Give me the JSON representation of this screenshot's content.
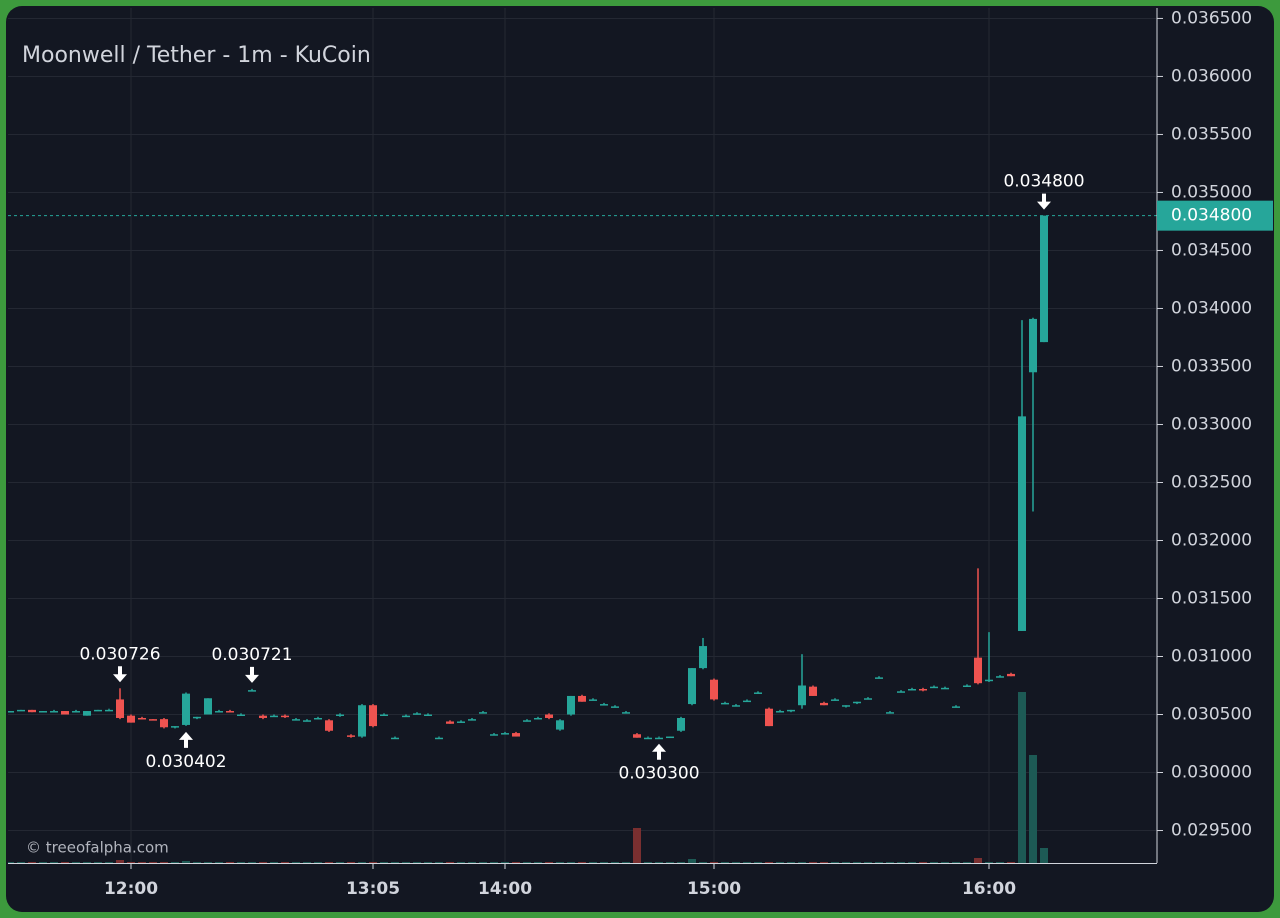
{
  "chart_data": {
    "type": "candlestick",
    "title": "Moonwell / Tether - 1m - KuCoin",
    "watermark": "© treeofalpha.com",
    "up_color": "#26a69a",
    "down_color": "#ef5350",
    "ylim": [
      0.02922,
      0.03659
    ],
    "yticks": [
      {
        "value": 0.0295,
        "label": "0.029500"
      },
      {
        "value": 0.03,
        "label": "0.030000"
      },
      {
        "value": 0.0305,
        "label": "0.030500"
      },
      {
        "value": 0.031,
        "label": "0.031000"
      },
      {
        "value": 0.0315,
        "label": "0.031500"
      },
      {
        "value": 0.032,
        "label": "0.032000"
      },
      {
        "value": 0.0325,
        "label": "0.032500"
      },
      {
        "value": 0.033,
        "label": "0.033000"
      },
      {
        "value": 0.0335,
        "label": "0.033500"
      },
      {
        "value": 0.034,
        "label": "0.034000"
      },
      {
        "value": 0.0345,
        "label": "0.034500"
      },
      {
        "value": 0.035,
        "label": "0.035000"
      },
      {
        "value": 0.0355,
        "label": "0.035500"
      },
      {
        "value": 0.036,
        "label": "0.036000"
      },
      {
        "value": 0.0365,
        "label": "0.036500"
      }
    ],
    "grid": true,
    "price_line": {
      "value": 0.0348,
      "label": "0.034800"
    },
    "annotations": [
      {
        "candle": 10,
        "kind": "high",
        "value": 0.030726,
        "label": "0.030726"
      },
      {
        "candle": 16,
        "kind": "low",
        "value": 0.030402,
        "label": "0.030402"
      },
      {
        "candle": 22,
        "kind": "high",
        "value": 0.030721,
        "label": "0.030721"
      },
      {
        "candle": 59,
        "kind": "low",
        "value": 0.0303,
        "label": "0.030300"
      },
      {
        "candle": 94,
        "kind": "high",
        "value": 0.0348,
        "label": "0.034800"
      }
    ],
    "categories": [
      null,
      null,
      null,
      null,
      null,
      null,
      null,
      null,
      null,
      null,
      null,
      "12:00",
      null,
      null,
      null,
      null,
      null,
      null,
      null,
      null,
      null,
      null,
      null,
      null,
      null,
      null,
      null,
      null,
      null,
      null,
      null,
      null,
      null,
      "13:05",
      null,
      null,
      null,
      null,
      null,
      null,
      null,
      null,
      null,
      null,
      null,
      "14:00",
      null,
      null,
      null,
      null,
      null,
      null,
      null,
      null,
      null,
      null,
      null,
      null,
      null,
      null,
      null,
      null,
      null,
      null,
      "15:00",
      null,
      null,
      null,
      null,
      null,
      null,
      null,
      null,
      null,
      null,
      null,
      null,
      null,
      null,
      null,
      null,
      null,
      null,
      null,
      null,
      null,
      null,
      null,
      null,
      "16:00",
      null,
      null,
      null,
      null,
      null
    ],
    "ohlc": [
      [
        0.03053,
        0.03053,
        0.03052,
        0.03053
      ],
      [
        0.03053,
        0.03054,
        0.03053,
        0.03054
      ],
      [
        0.03054,
        0.03054,
        0.03052,
        0.03052
      ],
      [
        0.03052,
        0.03053,
        0.03052,
        0.03053
      ],
      [
        0.03053,
        0.03054,
        0.03053,
        0.03053
      ],
      [
        0.03053,
        0.03053,
        0.0305,
        0.0305
      ],
      [
        0.03053,
        0.03054,
        0.03052,
        0.03053
      ],
      [
        0.03049,
        0.03053,
        0.03049,
        0.03053
      ],
      [
        0.03053,
        0.03054,
        0.03053,
        0.03054
      ],
      [
        0.03054,
        0.03055,
        0.03054,
        0.03054
      ],
      [
        0.03063,
        0.030726,
        0.03046,
        0.03047
      ],
      [
        0.03049,
        0.0305,
        0.03043,
        0.03043
      ],
      [
        0.03047,
        0.03048,
        0.03046,
        0.03046
      ],
      [
        0.03046,
        0.03046,
        0.03045,
        0.03045
      ],
      [
        0.03046,
        0.03047,
        0.03038,
        0.03039
      ],
      [
        0.03039,
        0.0304,
        0.03038,
        0.0304
      ],
      [
        0.03041,
        0.03069,
        0.030402,
        0.03068
      ],
      [
        0.03047,
        0.03048,
        0.03046,
        0.03048
      ],
      [
        0.0305,
        0.03064,
        0.0305,
        0.03064
      ],
      [
        0.03053,
        0.03054,
        0.03052,
        0.03053
      ],
      [
        0.03053,
        0.03054,
        0.03052,
        0.03052
      ],
      [
        0.0305,
        0.03051,
        0.03049,
        0.0305
      ],
      [
        0.03071,
        0.030721,
        0.0307,
        0.03071
      ],
      [
        0.03049,
        0.0305,
        0.03046,
        0.03047
      ],
      [
        0.03049,
        0.0305,
        0.03048,
        0.03049
      ],
      [
        0.03049,
        0.0305,
        0.03047,
        0.03048
      ],
      [
        0.03046,
        0.03047,
        0.03045,
        0.03046
      ],
      [
        0.03045,
        0.03046,
        0.03044,
        0.03045
      ],
      [
        0.03047,
        0.03048,
        0.03046,
        0.03047
      ],
      [
        0.03045,
        0.03046,
        0.03035,
        0.03036
      ],
      [
        0.0305,
        0.03051,
        0.03048,
        0.0305
      ],
      [
        0.03032,
        0.03033,
        0.0303,
        0.03031
      ],
      [
        0.03031,
        0.03059,
        0.0303,
        0.03058
      ],
      [
        0.03058,
        0.03059,
        0.03039,
        0.0304
      ],
      [
        0.0305,
        0.03051,
        0.03049,
        0.0305
      ],
      [
        0.0303,
        0.03031,
        0.03029,
        0.0303
      ],
      [
        0.03049,
        0.0305,
        0.03048,
        0.03049
      ],
      [
        0.03051,
        0.03052,
        0.0305,
        0.03051
      ],
      [
        0.0305,
        0.03051,
        0.03049,
        0.0305
      ],
      [
        0.0303,
        0.03031,
        0.0303,
        0.0303
      ],
      [
        0.03044,
        0.03045,
        0.03042,
        0.03042
      ],
      [
        0.03044,
        0.03045,
        0.03043,
        0.03044
      ],
      [
        0.03046,
        0.03047,
        0.03045,
        0.03046
      ],
      [
        0.03052,
        0.03053,
        0.03051,
        0.03052
      ],
      [
        0.03033,
        0.03034,
        0.03032,
        0.03033
      ],
      [
        0.03034,
        0.03035,
        0.03033,
        0.03034
      ],
      [
        0.03034,
        0.03035,
        0.03031,
        0.03031
      ],
      [
        0.03045,
        0.03046,
        0.03044,
        0.03045
      ],
      [
        0.03047,
        0.03048,
        0.03046,
        0.03047
      ],
      [
        0.0305,
        0.03051,
        0.03046,
        0.03047
      ],
      [
        0.03037,
        0.03046,
        0.03036,
        0.03045
      ],
      [
        0.0305,
        0.03066,
        0.03049,
        0.03066
      ],
      [
        0.03066,
        0.03067,
        0.03061,
        0.03061
      ],
      [
        0.03063,
        0.03064,
        0.03062,
        0.03063
      ],
      [
        0.03059,
        0.0306,
        0.03058,
        0.03059
      ],
      [
        0.03057,
        0.03058,
        0.03056,
        0.03057
      ],
      [
        0.03052,
        0.03053,
        0.03051,
        0.03052
      ],
      [
        0.03033,
        0.03034,
        0.0303,
        0.0303
      ],
      [
        0.0303,
        0.03031,
        0.0303,
        0.0303
      ],
      [
        0.0303,
        0.03031,
        0.0303,
        0.0303
      ],
      [
        0.0303,
        0.03031,
        0.0303,
        0.03031
      ],
      [
        0.03036,
        0.03048,
        0.03035,
        0.03047
      ],
      [
        0.03059,
        0.0309,
        0.03058,
        0.0309
      ],
      [
        0.0309,
        0.03116,
        0.03089,
        0.03109
      ],
      [
        0.0308,
        0.03081,
        0.03062,
        0.03063
      ],
      [
        0.0306,
        0.03061,
        0.03059,
        0.0306
      ],
      [
        0.03058,
        0.03059,
        0.03057,
        0.03058
      ],
      [
        0.03062,
        0.03063,
        0.03061,
        0.03062
      ],
      [
        0.03069,
        0.0307,
        0.03068,
        0.03069
      ],
      [
        0.03055,
        0.03056,
        0.0304,
        0.0304
      ],
      [
        0.03053,
        0.03054,
        0.03052,
        0.03053
      ],
      [
        0.03053,
        0.03054,
        0.03052,
        0.03054
      ],
      [
        0.03058,
        0.03102,
        0.03055,
        0.03075
      ],
      [
        0.03074,
        0.03075,
        0.03066,
        0.03066
      ],
      [
        0.0306,
        0.03061,
        0.03058,
        0.03058
      ],
      [
        0.03063,
        0.03064,
        0.03062,
        0.03063
      ],
      [
        0.03057,
        0.03058,
        0.03056,
        0.03058
      ],
      [
        0.0306,
        0.03061,
        0.03059,
        0.03061
      ],
      [
        0.03064,
        0.03065,
        0.03063,
        0.03064
      ],
      [
        0.03082,
        0.03083,
        0.03081,
        0.03082
      ],
      [
        0.03052,
        0.03053,
        0.03051,
        0.03052
      ],
      [
        0.0307,
        0.03071,
        0.03069,
        0.0307
      ],
      [
        0.03072,
        0.03073,
        0.03071,
        0.03072
      ],
      [
        0.03072,
        0.03073,
        0.0307,
        0.03071
      ],
      [
        0.03074,
        0.03075,
        0.03073,
        0.03074
      ],
      [
        0.03073,
        0.03074,
        0.03072,
        0.03073
      ],
      [
        0.03057,
        0.03058,
        0.03056,
        0.03057
      ],
      [
        0.03075,
        0.03076,
        0.03074,
        0.03075
      ],
      [
        0.03099,
        0.03176,
        0.03076,
        0.03077
      ],
      [
        0.03079,
        0.03121,
        0.03078,
        0.0308
      ],
      [
        0.03083,
        0.03084,
        0.03082,
        0.03083
      ],
      [
        0.03085,
        0.03086,
        0.03083,
        0.03083
      ],
      [
        0.03122,
        0.0339,
        0.03122,
        0.03307
      ],
      [
        0.03345,
        0.03392,
        0.03225,
        0.03391
      ],
      [
        0.03371,
        0.0348,
        0.03371,
        0.0348
      ]
    ],
    "volume": [
      1,
      1,
      1,
      1,
      1,
      1,
      1,
      1,
      1,
      1,
      3,
      1,
      1,
      1,
      1,
      1,
      2,
      1,
      1,
      1,
      1,
      1,
      1,
      1,
      1,
      1,
      1,
      1,
      1,
      1,
      1,
      1,
      1,
      1,
      1,
      1,
      1,
      1,
      1,
      1,
      1,
      1,
      1,
      1,
      1,
      1,
      1,
      1,
      1,
      1,
      1,
      1,
      1,
      1,
      1,
      1,
      1,
      35,
      1,
      1,
      1,
      1,
      4,
      1,
      1,
      1,
      1,
      1,
      1,
      1,
      1,
      1,
      1,
      1,
      1,
      1,
      1,
      1,
      1,
      1,
      1,
      1,
      1,
      1,
      1,
      1,
      1,
      1,
      5,
      1,
      1,
      1,
      171,
      108,
      15
    ]
  }
}
